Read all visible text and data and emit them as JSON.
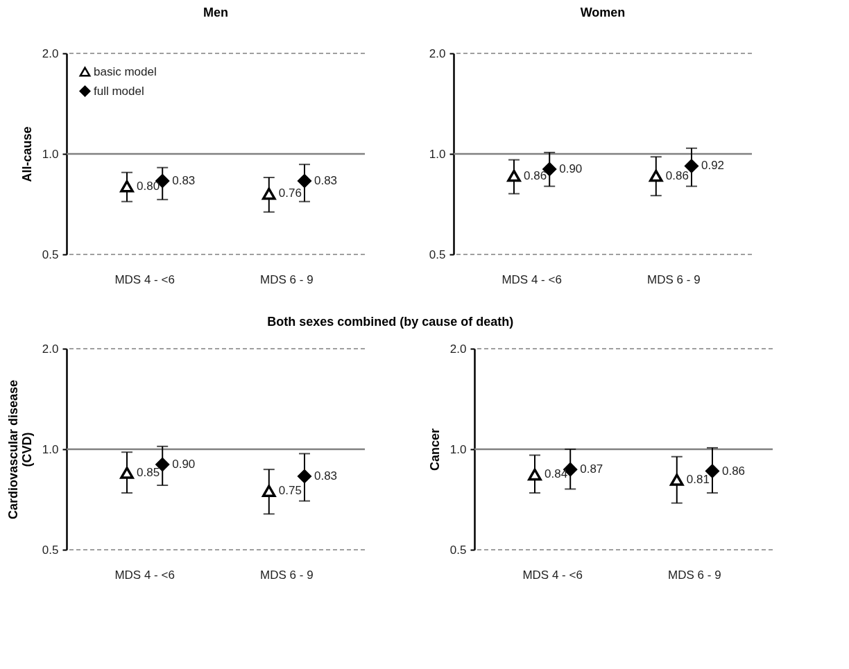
{
  "chart_data": [
    {
      "type": "scatter",
      "title": "Men",
      "ylabel": "All-cause",
      "categories": [
        "MDS 4 - <6",
        "MDS 6 - 9"
      ],
      "log": true,
      "ylim": [
        0.5,
        2.0
      ],
      "yticks": [
        {
          "value": 0.5,
          "label": "0.5"
        },
        {
          "value": 1,
          "label": "1.0"
        },
        {
          "value": 2,
          "label": "2.0"
        }
      ],
      "legend": "top left",
      "data_labels": true,
      "ref_lines": [
        {
          "axis": "y",
          "value": 0.5,
          "color": "#808080",
          "line_style": "dashed"
        },
        {
          "axis": "y",
          "value": 1,
          "color": "#808080"
        },
        {
          "axis": "y",
          "value": 2,
          "color": "#808080",
          "line_style": "dashed"
        }
      ],
      "series": [
        {
          "name": "basic model",
          "color": "#000000",
          "marker": "triangle",
          "values": [
            0.8,
            0.76
          ],
          "value_labels": [
            "0.80",
            "0.76"
          ],
          "errors": [
            [
              0.72,
              0.88
            ],
            [
              0.67,
              0.85
            ]
          ]
        },
        {
          "name": "full model",
          "color": "#000000",
          "marker": "diamond",
          "values": [
            0.83,
            0.83
          ],
          "value_labels": [
            "0.83",
            "0.83"
          ],
          "errors": [
            [
              0.73,
              0.91
            ],
            [
              0.72,
              0.93
            ]
          ]
        }
      ]
    },
    {
      "type": "scatter",
      "title": "Women",
      "categories": [
        "MDS 4 - <6",
        "MDS 6 - 9"
      ],
      "log": true,
      "ylim": [
        0.5,
        2.0
      ],
      "yticks": [
        {
          "value": 0.5,
          "label": "0.5"
        },
        {
          "value": 1,
          "label": "1.0"
        },
        {
          "value": 2,
          "label": "2.0"
        }
      ],
      "data_labels": true,
      "ref_lines": [
        {
          "axis": "y",
          "value": 0.5,
          "color": "#808080",
          "line_style": "dashed"
        },
        {
          "axis": "y",
          "value": 1,
          "color": "#808080"
        },
        {
          "axis": "y",
          "value": 2,
          "color": "#808080",
          "line_style": "dashed"
        }
      ],
      "series": [
        {
          "color": "#000000",
          "marker": "triangle",
          "values": [
            0.86,
            0.86
          ],
          "value_labels": [
            "0.86",
            "0.86"
          ],
          "errors": [
            [
              0.76,
              0.96
            ],
            [
              0.75,
              0.98
            ]
          ]
        },
        {
          "color": "#000000",
          "marker": "diamond",
          "values": [
            0.9,
            0.92
          ],
          "value_labels": [
            "0.90",
            "0.92"
          ],
          "errors": [
            [
              0.8,
              1.01
            ],
            [
              0.8,
              1.04
            ]
          ]
        }
      ]
    },
    {
      "type": "scatter",
      "title": "Both sexes combined (by cause of death)",
      "ylabel": "Cardiovascular disease\n(CVD)",
      "categories": [
        "MDS 4 - <6",
        "MDS 6 - 9"
      ],
      "log": true,
      "ylim": [
        0.5,
        2.0
      ],
      "yticks": [
        {
          "value": 0.5,
          "label": "0.5"
        },
        {
          "value": 1,
          "label": "1.0"
        },
        {
          "value": 2,
          "label": "2.0"
        }
      ],
      "data_labels": true,
      "ref_lines": [
        {
          "axis": "y",
          "value": 0.5,
          "color": "#808080",
          "line_style": "dashed"
        },
        {
          "axis": "y",
          "value": 1,
          "color": "#808080"
        },
        {
          "axis": "y",
          "value": 2,
          "color": "#808080",
          "line_style": "dashed"
        }
      ],
      "series": [
        {
          "color": "#000000",
          "marker": "triangle",
          "values": [
            0.85,
            0.75
          ],
          "value_labels": [
            "0.85",
            "0.75"
          ],
          "errors": [
            [
              0.74,
              0.98
            ],
            [
              0.64,
              0.87
            ]
          ]
        },
        {
          "color": "#000000",
          "marker": "diamond",
          "values": [
            0.9,
            0.83
          ],
          "value_labels": [
            "0.90",
            "0.83"
          ],
          "errors": [
            [
              0.78,
              1.02
            ],
            [
              0.7,
              0.97
            ]
          ]
        }
      ]
    },
    {
      "type": "scatter",
      "ylabel": "Cancer",
      "categories": [
        "MDS 4 - <6",
        "MDS 6 - 9"
      ],
      "log": true,
      "ylim": [
        0.5,
        2.0
      ],
      "yticks": [
        {
          "value": 0.5,
          "label": "0.5"
        },
        {
          "value": 1,
          "label": "1.0"
        },
        {
          "value": 2,
          "label": "2.0"
        }
      ],
      "data_labels": true,
      "ref_lines": [
        {
          "axis": "y",
          "value": 0.5,
          "color": "#808080",
          "line_style": "dashed"
        },
        {
          "axis": "y",
          "value": 1,
          "color": "#808080"
        },
        {
          "axis": "y",
          "value": 2,
          "color": "#808080",
          "line_style": "dashed"
        }
      ],
      "series": [
        {
          "color": "#000000",
          "marker": "triangle",
          "values": [
            0.84,
            0.81
          ],
          "value_labels": [
            "0.84",
            "0.81"
          ],
          "errors": [
            [
              0.74,
              0.96
            ],
            [
              0.69,
              0.95
            ]
          ]
        },
        {
          "color": "#000000",
          "marker": "diamond",
          "values": [
            0.87,
            0.86
          ],
          "value_labels": [
            "0.87",
            "0.86"
          ],
          "errors": [
            [
              0.76,
              1.0
            ],
            [
              0.74,
              1.01
            ]
          ]
        }
      ]
    }
  ]
}
